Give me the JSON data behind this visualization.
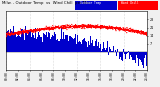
{
  "title": "Milw. - Outdoor Temp vs Wind Chill per Min",
  "bg_color": "#f0f0f0",
  "plot_bg": "#ffffff",
  "bar_color": "#0000cc",
  "windchill_color": "#ff0000",
  "n_points": 1440,
  "temp_seed": 7,
  "ylim": [
    -15,
    35
  ],
  "ytick_vals": [
    7,
    14,
    21,
    28
  ],
  "legend_temp_color": "#0000cc",
  "legend_wc_color": "#ff0000",
  "grid_color": "#bbbbbb",
  "title_fontsize": 3.5,
  "legend_fontsize": 2.8,
  "tick_fontsize": 2.5
}
